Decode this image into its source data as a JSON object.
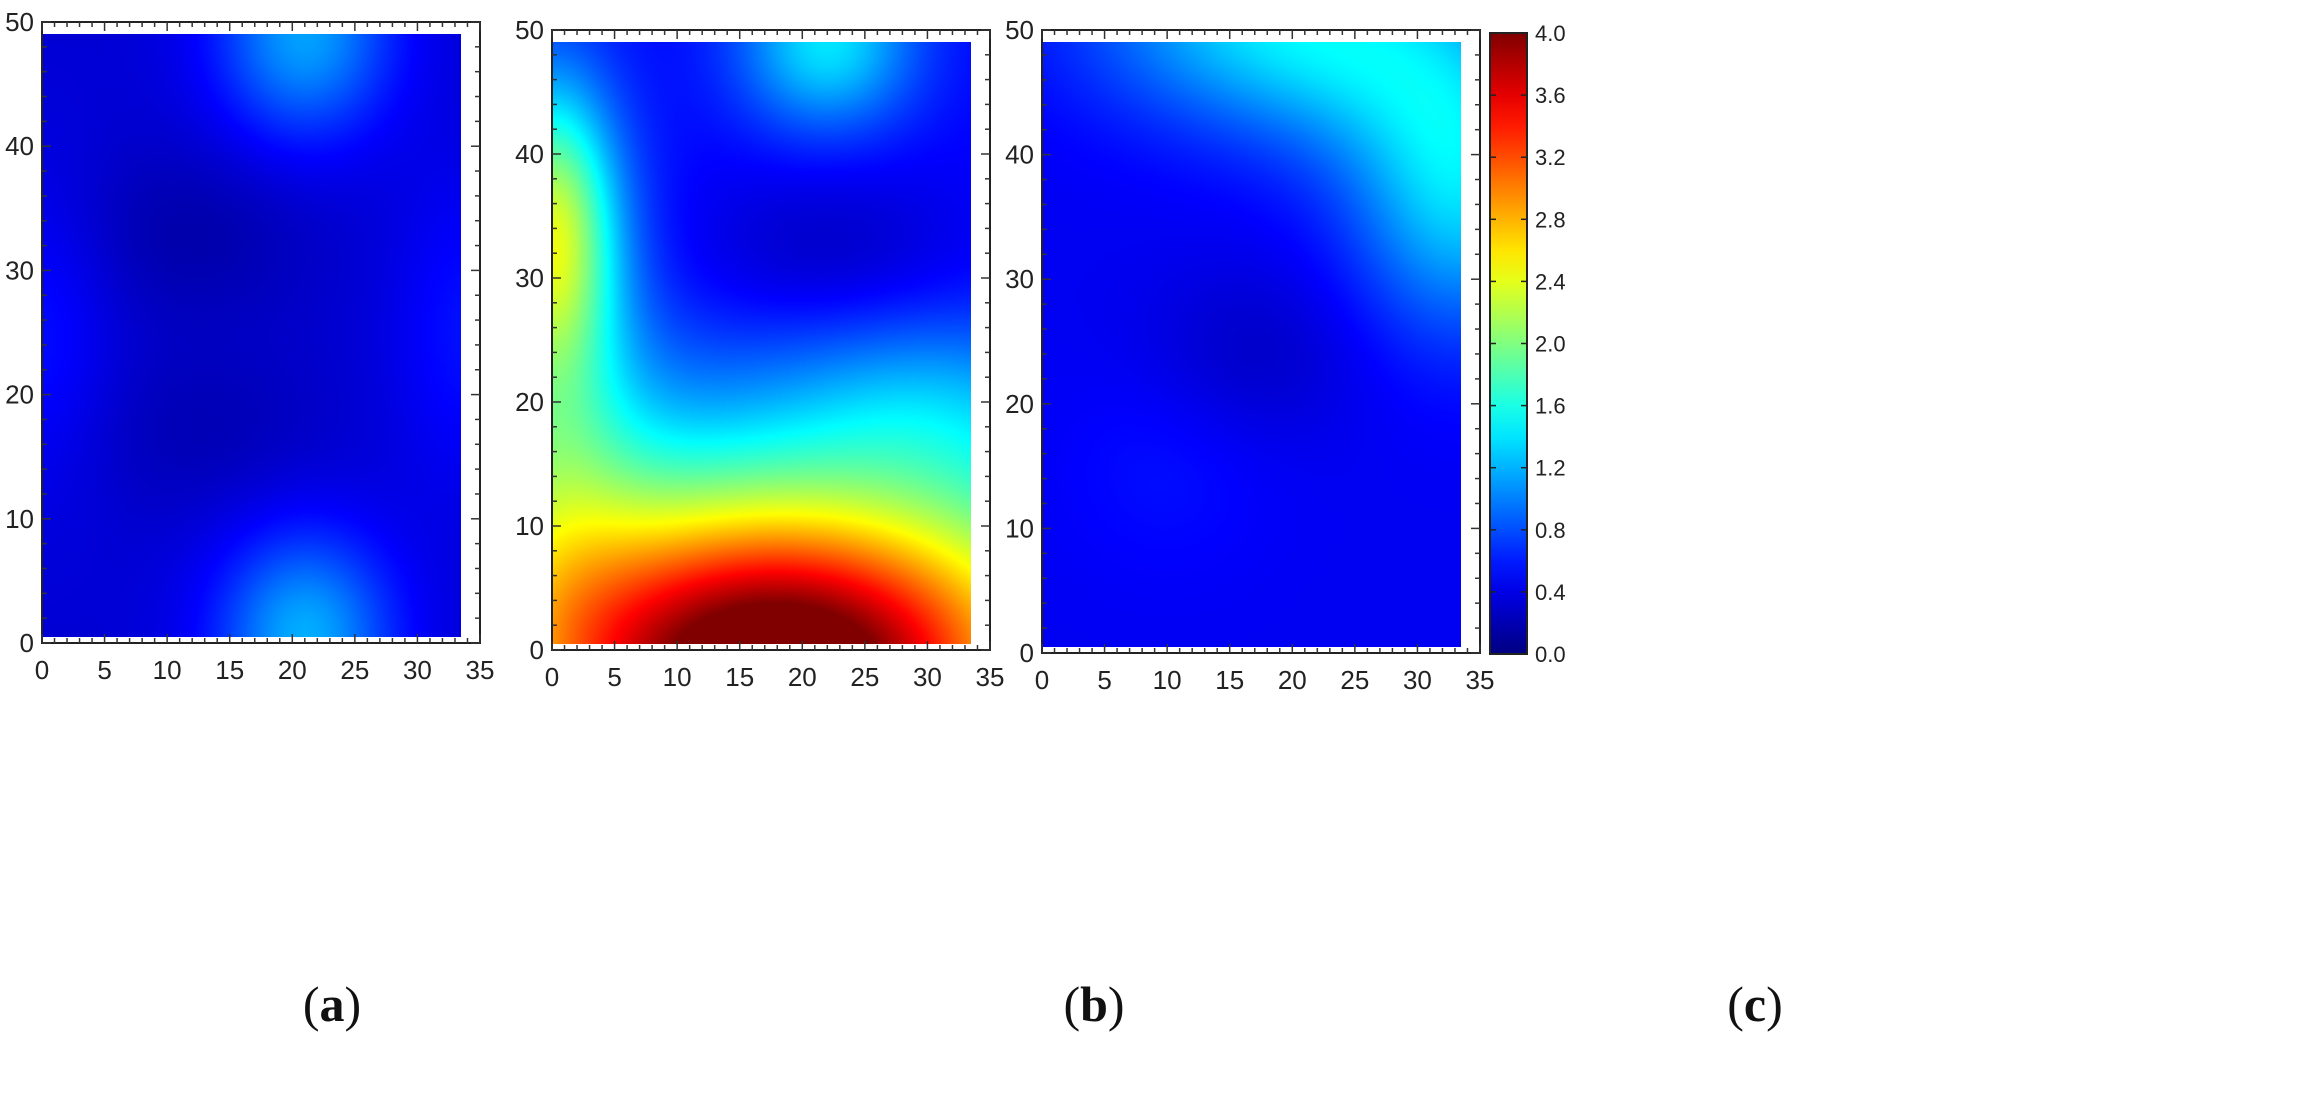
{
  "chart_data": [
    {
      "type": "heatmap",
      "panel_label": "a",
      "x": {
        "ticks": [
          0,
          5,
          10,
          15,
          20,
          25,
          30,
          35
        ],
        "lim": [
          0,
          35
        ]
      },
      "y": {
        "ticks": [
          0,
          10,
          20,
          30,
          40,
          50
        ],
        "lim": [
          0,
          50
        ]
      },
      "data_extent": {
        "x": [
          0,
          33.5
        ],
        "y": [
          0.5,
          49
        ]
      },
      "field": {
        "base": 0.33,
        "bumps": [
          {
            "x": 21,
            "y": 0.5,
            "amp": 0.85,
            "sx": 5,
            "sy": 6
          },
          {
            "x": 21,
            "y": 49,
            "amp": 0.8,
            "sx": 5,
            "sy": 6
          },
          {
            "x": 0,
            "y": 25,
            "amp": 0.22,
            "sx": 4,
            "sy": 9
          },
          {
            "x": 33.5,
            "y": 25,
            "amp": 0.22,
            "sx": 4,
            "sy": 9
          },
          {
            "x": 12,
            "y": 33,
            "amp": -0.16,
            "sx": 7,
            "sy": 5
          },
          {
            "x": 13,
            "y": 17,
            "amp": -0.12,
            "sx": 7,
            "sy": 5
          }
        ]
      }
    },
    {
      "type": "heatmap",
      "panel_label": "b",
      "x": {
        "ticks": [
          0,
          5,
          10,
          15,
          20,
          25,
          30,
          35
        ],
        "lim": [
          0,
          35
        ]
      },
      "y": {
        "ticks": [
          0,
          10,
          20,
          30,
          40,
          50
        ],
        "lim": [
          0,
          50
        ]
      },
      "data_extent": {
        "x": [
          0,
          33.5
        ],
        "y": [
          0.5,
          49
        ]
      },
      "field": {
        "base": 0.5,
        "bumps": [
          {
            "x": 18,
            "y": -3,
            "amp": 3.0,
            "sx": 14,
            "sy": 9
          },
          {
            "x": 17,
            "y": 5,
            "amp": 1.25,
            "sx": 30,
            "sy": 11
          },
          {
            "x": 0,
            "y": 34,
            "amp": 1.4,
            "sx": 3.5,
            "sy": 8
          },
          {
            "x": 0,
            "y": 22,
            "amp": 0.7,
            "sx": 5,
            "sy": 14
          },
          {
            "x": 22,
            "y": 49,
            "amp": 0.9,
            "sx": 5,
            "sy": 5
          },
          {
            "x": 30,
            "y": 20,
            "amp": 0.35,
            "sx": 8,
            "sy": 5
          },
          {
            "x": 22,
            "y": 32,
            "amp": -0.25,
            "sx": 8,
            "sy": 5
          }
        ]
      }
    },
    {
      "type": "heatmap",
      "panel_label": "c",
      "x": {
        "ticks": [
          0,
          5,
          10,
          15,
          20,
          25,
          30,
          35
        ],
        "lim": [
          0,
          35
        ]
      },
      "y": {
        "ticks": [
          0,
          10,
          20,
          30,
          40,
          50
        ],
        "lim": [
          0,
          50
        ]
      },
      "data_extent": {
        "x": [
          0,
          33.5
        ],
        "y": [
          0.5,
          49
        ]
      },
      "field": {
        "base": 0.45,
        "bumps": [
          {
            "x": 18,
            "y": 51,
            "amp": 0.85,
            "sx": 10,
            "sy": 6
          },
          {
            "x": 33.5,
            "y": 37,
            "amp": 0.85,
            "sx": 6,
            "sy": 8
          },
          {
            "x": 28,
            "y": 46,
            "amp": 0.4,
            "sx": 8,
            "sy": 6
          },
          {
            "x": 17,
            "y": 24,
            "amp": -0.17,
            "sx": 6,
            "sy": 5
          },
          {
            "x": 10,
            "y": 15,
            "amp": 0.1,
            "sx": 6,
            "sy": 6
          }
        ]
      }
    }
  ],
  "colorbar": {
    "range": [
      0.0,
      4.0
    ],
    "ticks": [
      "0.0",
      "0.4",
      "0.8",
      "1.2",
      "1.6",
      "2.0",
      "2.4",
      "2.8",
      "3.2",
      "3.6",
      "4.0"
    ],
    "colormap": "jet"
  },
  "captions": [
    {
      "label": "a"
    },
    {
      "label": "b"
    },
    {
      "label": "c"
    }
  ]
}
